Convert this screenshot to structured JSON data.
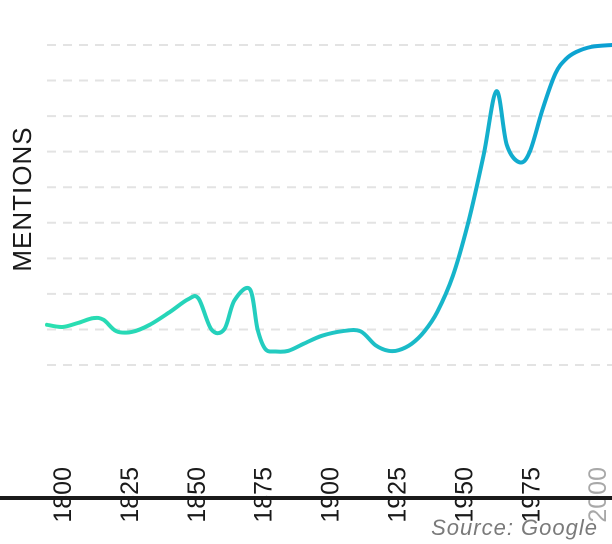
{
  "chart_data": {
    "type": "line",
    "title": "",
    "xlabel": "",
    "ylabel": "MENTIONS",
    "x_ticks": [
      "1800",
      "1825",
      "1850",
      "1875",
      "1900",
      "1925",
      "1950",
      "1975",
      "2000"
    ],
    "xlim": [
      1800,
      2020
    ],
    "ylim": [
      0,
      9
    ],
    "grid": true,
    "series": [
      {
        "x": [
          1800,
          1806,
          1812,
          1818,
          1822,
          1827,
          1833,
          1840,
          1848,
          1855,
          1859,
          1864,
          1869,
          1873,
          1879,
          1882,
          1885,
          1889,
          1894,
          1900,
          1907,
          1915,
          1922,
          1928,
          1933,
          1937,
          1942,
          1947,
          1952,
          1958,
          1964,
          1970,
          1975,
          1979,
          1984,
          1988,
          1993,
          1998,
          2002,
          2006,
          2012,
          2020
        ],
        "y": [
          1.13,
          1.07,
          1.18,
          1.32,
          1.27,
          0.95,
          0.93,
          1.13,
          1.5,
          1.85,
          1.87,
          1.0,
          1.0,
          1.82,
          2.13,
          1.0,
          0.45,
          0.38,
          0.4,
          0.6,
          0.82,
          0.95,
          0.95,
          0.55,
          0.4,
          0.42,
          0.6,
          0.95,
          1.5,
          2.5,
          4.0,
          5.9,
          7.7,
          6.2,
          5.7,
          6.0,
          7.2,
          8.2,
          8.6,
          8.8,
          8.95,
          9.0
        ]
      }
    ],
    "colors": {
      "start": "#2ae0b0",
      "end": "#0a9ed3",
      "grid": "#e3e3e3",
      "axis": "#1a1a1a",
      "muted_tick": "#a8a8a8"
    }
  },
  "source": "Source: Google"
}
